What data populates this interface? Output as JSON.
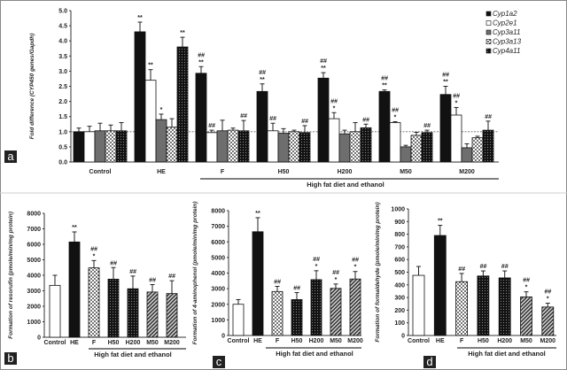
{
  "group_label": "High fat diet and ethanol",
  "panel_labels": [
    "a",
    "b",
    "c",
    "d"
  ],
  "colors": {
    "black": "#111111",
    "gray": "#6e6e6e",
    "white": "#ffffff",
    "axis": "#333333"
  },
  "chart_data": [
    {
      "panel": "a",
      "type": "bar",
      "ylabel": "Fold difference (CYP450 genes/Gapdh)",
      "ylim": [
        0,
        5.0
      ],
      "yticks": [
        "0.0",
        "0.5",
        "1.0",
        "1.5",
        "2.0",
        "2.5",
        "3.0",
        "3.5",
        "4.0",
        "4.5",
        "5.0"
      ],
      "reference_line": 1.0,
      "legend_placement": "top-right",
      "categories": [
        "Control",
        "HE",
        "F",
        "H50",
        "H200",
        "M50",
        "M200"
      ],
      "series": [
        {
          "name": "Cyp1a2",
          "fill": "black",
          "values": [
            1.0,
            4.3,
            2.93,
            2.33,
            2.77,
            2.33,
            2.23
          ],
          "error_top": [
            1.12,
            4.62,
            3.15,
            2.58,
            2.95,
            2.38,
            2.5
          ],
          "annotations": [
            "",
            "**",
            "##\n**",
            "##\n**",
            "##\n**",
            "##\n**",
            "##\n**"
          ]
        },
        {
          "name": "Cyp2e1",
          "fill": "white",
          "values": [
            1.0,
            2.7,
            0.97,
            1.03,
            1.43,
            1.3,
            1.55
          ],
          "error_top": [
            1.18,
            3.05,
            1.05,
            1.28,
            1.63,
            1.33,
            1.8
          ],
          "annotations": [
            "",
            "**",
            "##",
            "##",
            "##\n*",
            "##\n*",
            "##\n*"
          ]
        },
        {
          "name": "Cyp3a11",
          "fill": "gray",
          "values": [
            1.03,
            1.4,
            1.03,
            0.95,
            0.93,
            0.5,
            0.47
          ],
          "error_top": [
            1.28,
            1.58,
            1.38,
            1.1,
            1.05,
            0.55,
            0.6
          ],
          "annotations": [
            "",
            "*",
            "",
            "",
            "",
            "",
            ""
          ]
        },
        {
          "name": "Cyp3a13",
          "fill": "white-dots",
          "values": [
            1.03,
            1.15,
            1.05,
            1.0,
            1.0,
            0.88,
            0.8
          ],
          "error_top": [
            1.22,
            1.43,
            1.12,
            1.05,
            1.3,
            0.98,
            0.85
          ],
          "annotations": [
            "",
            "",
            "",
            "",
            "",
            "",
            ""
          ]
        },
        {
          "name": "Cyp4a11",
          "fill": "black-dots",
          "values": [
            1.03,
            3.8,
            1.03,
            0.97,
            1.13,
            0.97,
            1.05
          ],
          "error_top": [
            1.3,
            4.12,
            1.37,
            1.2,
            1.25,
            1.05,
            1.35
          ],
          "annotations": [
            "",
            "**",
            "##",
            "##",
            "##",
            "##",
            "##"
          ]
        }
      ]
    },
    {
      "panel": "b",
      "type": "bar",
      "ylabel": "Formation of resorufin (pmole/min/mg protein)",
      "ylim": [
        0,
        8000
      ],
      "yticks": [
        "0",
        "1000",
        "2000",
        "3000",
        "4000",
        "5000",
        "6000",
        "7000",
        "8000"
      ],
      "categories": [
        "Control",
        "HE",
        "F",
        "H50",
        "H200",
        "M50",
        "M200"
      ],
      "fills": [
        "white",
        "black",
        "white-dots",
        "black-dots",
        "black-dots",
        "hatch",
        "hatch"
      ],
      "values": [
        3350,
        6150,
        4480,
        3750,
        3130,
        2920,
        2820
      ],
      "error_top": [
        4000,
        6800,
        4950,
        4500,
        3950,
        3400,
        3650
      ],
      "annotations": [
        "",
        "**",
        "##\n*",
        "##",
        "##",
        "##",
        "##"
      ]
    },
    {
      "panel": "c",
      "type": "bar",
      "ylabel": "Formation of 4-aminophenol (pmole/min/mg protein)",
      "ylim": [
        0,
        8000
      ],
      "yticks": [
        "0",
        "1000",
        "2000",
        "3000",
        "4000",
        "5000",
        "6000",
        "7000",
        "8000"
      ],
      "categories": [
        "Control",
        "HE",
        "F",
        "H50",
        "H200",
        "M50",
        "M200"
      ],
      "fills": [
        "white",
        "black",
        "white-dots",
        "black-dots",
        "black-dots",
        "hatch",
        "hatch"
      ],
      "values": [
        2000,
        6650,
        2820,
        2300,
        3580,
        3020,
        3620
      ],
      "error_top": [
        2300,
        7550,
        3150,
        2750,
        4150,
        3300,
        4100
      ],
      "annotations": [
        "",
        "**",
        "##",
        "##",
        "##\n*",
        "##\n*",
        "##\n*"
      ]
    },
    {
      "panel": "d",
      "type": "bar",
      "ylabel": "Formation of formaldehyde (pmole/min/mg protein)",
      "ylim": [
        0,
        1000
      ],
      "yticks": [
        "0",
        "100",
        "200",
        "300",
        "400",
        "500",
        "600",
        "700",
        "800",
        "900",
        "1000"
      ],
      "categories": [
        "Control",
        "HE",
        "F",
        "H50",
        "H200",
        "M50",
        "M200"
      ],
      "fills": [
        "white",
        "black",
        "white-dots",
        "black-dots",
        "black-dots",
        "hatch",
        "hatch"
      ],
      "values": [
        475,
        790,
        425,
        470,
        455,
        305,
        225
      ],
      "error_top": [
        545,
        870,
        490,
        510,
        510,
        345,
        255
      ],
      "annotations": [
        "",
        "**",
        "##",
        "##",
        "##",
        "##\n*",
        "##\n*"
      ]
    }
  ]
}
